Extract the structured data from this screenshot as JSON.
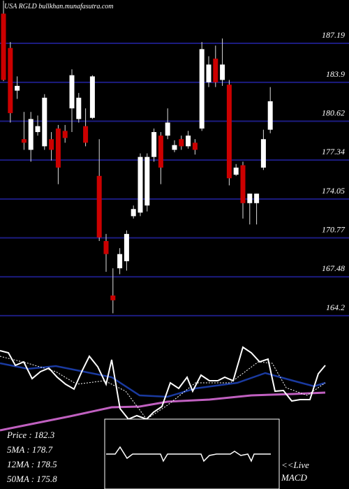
{
  "chart_data": {
    "type": "candlestick",
    "title": "USA RGLD bullkhan.munafasutra.com",
    "ylim": [
      163.72,
      190.85
    ],
    "yticks": [
      187.19,
      183.9,
      180.62,
      177.34,
      174.05,
      170.77,
      167.48,
      164.2
    ],
    "grid": true,
    "up_color": "#ffffff",
    "down_color": "#cc0000",
    "grid_color": "#1c1c80",
    "open": [
      189.7,
      186.8,
      183.2,
      179.1,
      178.2,
      179.7,
      178.5,
      179.1,
      180.0,
      179.8,
      181.7,
      180.8,
      180.2,
      180.9,
      176.0,
      170.5,
      165.9,
      168.2,
      168.8,
      172.6,
      172.9,
      173.5,
      177.6,
      179.4,
      179.4,
      178.2,
      179.1,
      178.5,
      178.8,
      180.0,
      183.9,
      185.9,
      184.1,
      183.7,
      176.1,
      176.9,
      173.7,
      173.7,
      176.7,
      179.9
    ],
    "high": [
      190.8,
      187.3,
      184.4,
      181.4,
      181.4,
      181.1,
      182.9,
      179.7,
      180.3,
      180.3,
      185.0,
      183.0,
      181.7,
      184.5,
      179.1,
      171.1,
      168.2,
      169.9,
      171.4,
      173.5,
      177.9,
      177.9,
      180.0,
      179.7,
      181.7,
      179.0,
      179.4,
      179.8,
      179.1,
      187.3,
      186.1,
      187.0,
      187.6,
      184.1,
      177.0,
      177.2,
      174.5,
      174.5,
      179.9,
      183.5
    ],
    "low": [
      184.0,
      180.5,
      182.5,
      178.2,
      177.2,
      179.4,
      178.2,
      177.3,
      175.3,
      178.8,
      179.7,
      180.5,
      178.5,
      180.8,
      170.5,
      167.9,
      164.4,
      167.7,
      168.0,
      172.4,
      172.6,
      173.0,
      177.2,
      175.3,
      179.1,
      178.0,
      178.2,
      178.3,
      177.8,
      179.8,
      183.5,
      183.5,
      183.6,
      175.2,
      176.0,
      172.4,
      171.9,
      171.9,
      176.5,
      179.6
    ],
    "close": [
      184.1,
      181.3,
      183.6,
      178.8,
      180.8,
      180.2,
      182.6,
      178.2,
      176.7,
      179.2,
      184.5,
      182.6,
      178.8,
      184.4,
      170.8,
      169.4,
      165.5,
      169.4,
      171.1,
      173.2,
      177.6,
      177.6,
      179.7,
      176.7,
      180.5,
      178.6,
      178.5,
      179.4,
      178.2,
      186.7,
      185.4,
      183.9,
      185.4,
      175.8,
      176.7,
      173.7,
      174.5,
      174.5,
      179.1,
      182.3
    ],
    "legend": [
      "Price : 182.3",
      "5MA : 178.7",
      "12MA : 178.5",
      "50MA : 175.8"
    ],
    "live_label": "<<Live",
    "macd_label": "MACD"
  }
}
